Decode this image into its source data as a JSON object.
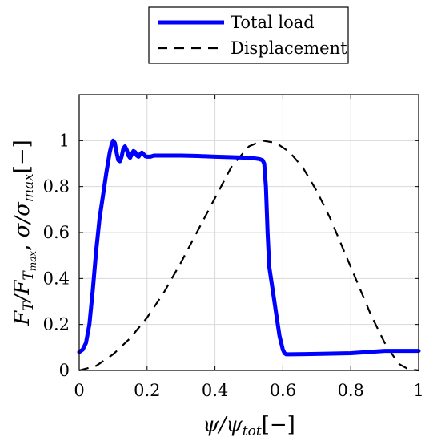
{
  "chart_data": {
    "type": "line",
    "xlabel": "ψ/ψ_tot[−]",
    "ylabel": "F_T/F_Tmax, σ/σ_max[−]",
    "xlim": [
      0,
      1
    ],
    "ylim": [
      0,
      1.2
    ],
    "grid": true,
    "legend_position": "top-center",
    "xticks": [
      "0",
      "0.2",
      "0.4",
      "0.6",
      "0.8",
      "1"
    ],
    "yticks": [
      "0",
      "0.2",
      "0.4",
      "0.6",
      "0.8",
      "1"
    ],
    "series": [
      {
        "name": "Total load",
        "color": "#0000ff",
        "style": "solid",
        "x": [
          0,
          0.01,
          0.02,
          0.03,
          0.04,
          0.05,
          0.06,
          0.07,
          0.08,
          0.09,
          0.095,
          0.1,
          0.105,
          0.11,
          0.115,
          0.12,
          0.125,
          0.13,
          0.135,
          0.14,
          0.145,
          0.15,
          0.155,
          0.16,
          0.165,
          0.17,
          0.175,
          0.18,
          0.185,
          0.19,
          0.195,
          0.2,
          0.21,
          0.22,
          0.23,
          0.25,
          0.3,
          0.35,
          0.4,
          0.45,
          0.5,
          0.52,
          0.53,
          0.54,
          0.545,
          0.55,
          0.555,
          0.56,
          0.57,
          0.58,
          0.59,
          0.6,
          0.605,
          0.61,
          0.615,
          0.62,
          0.7,
          0.8,
          0.9,
          1.0
        ],
        "y": [
          0.08,
          0.09,
          0.12,
          0.2,
          0.35,
          0.52,
          0.66,
          0.76,
          0.86,
          0.95,
          0.98,
          1.0,
          0.99,
          0.95,
          0.915,
          0.91,
          0.93,
          0.965,
          0.975,
          0.96,
          0.935,
          0.925,
          0.94,
          0.955,
          0.95,
          0.935,
          0.93,
          0.942,
          0.948,
          0.94,
          0.932,
          0.93,
          0.93,
          0.935,
          0.935,
          0.935,
          0.935,
          0.933,
          0.93,
          0.928,
          0.925,
          0.922,
          0.92,
          0.915,
          0.9,
          0.8,
          0.6,
          0.45,
          0.35,
          0.25,
          0.15,
          0.09,
          0.075,
          0.07,
          0.07,
          0.07,
          0.072,
          0.075,
          0.085,
          0.085
        ]
      },
      {
        "name": "Displacement",
        "color": "#000000",
        "style": "dashed",
        "x": [
          0,
          0.05,
          0.1,
          0.15,
          0.2,
          0.25,
          0.3,
          0.35,
          0.4,
          0.45,
          0.5,
          0.54,
          0.58,
          0.62,
          0.66,
          0.7,
          0.74,
          0.78,
          0.82,
          0.86,
          0.9,
          0.94,
          0.97,
          1.0
        ],
        "y": [
          0.0,
          0.02,
          0.07,
          0.14,
          0.23,
          0.34,
          0.47,
          0.61,
          0.75,
          0.89,
          0.975,
          1.0,
          0.99,
          0.95,
          0.88,
          0.78,
          0.66,
          0.52,
          0.38,
          0.24,
          0.12,
          0.03,
          0.005,
          0.0
        ]
      }
    ]
  }
}
